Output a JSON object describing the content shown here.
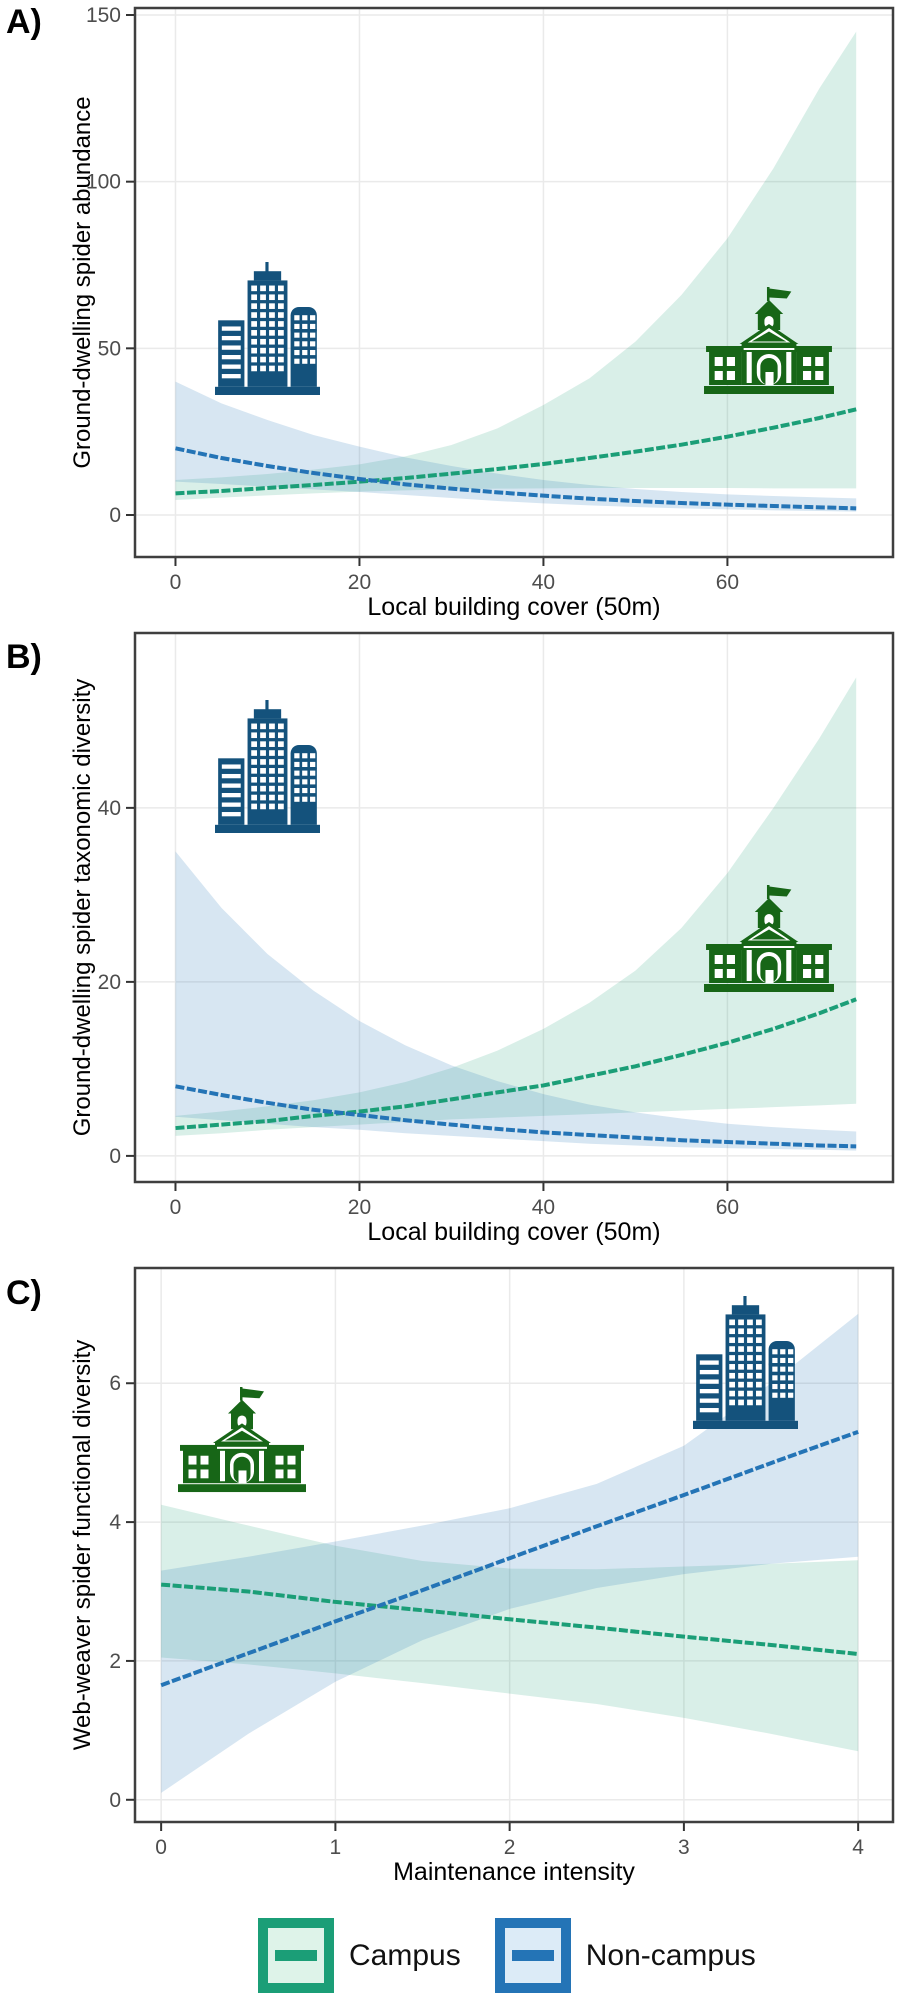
{
  "figure_title": "",
  "legend": {
    "items": [
      {
        "label": "Campus",
        "line_color": "#1b9e77",
        "key_fill": "#def3e9"
      },
      {
        "label": "Non-campus",
        "line_color": "#2474b6",
        "key_fill": "#dcebf7"
      }
    ],
    "position": "bottom"
  },
  "chart_data": {
    "type": "line",
    "panels": [
      {
        "label": "A)",
        "xlabel": "Local building cover (50m)",
        "ylabel": "Ground-dwelling spider abundance",
        "xticks": [
          0,
          20,
          40,
          60
        ],
        "yticks": [
          0,
          50,
          100,
          150
        ],
        "xlim": [
          -4.4,
          78
        ],
        "ylim": [
          -12.6,
          152.1
        ],
        "grid": true,
        "x": [
          0,
          5,
          10,
          15,
          20,
          25,
          30,
          35,
          40,
          45,
          50,
          55,
          60,
          65,
          70,
          74
        ],
        "series": [
          {
            "name": "Campus",
            "color": "#1b9e77",
            "ribbon": "rgba(27,158,119,0.17)",
            "y": [
              6.5,
              7.2,
              8.1,
              9.0,
              10.0,
              11.1,
              12.4,
              13.8,
              15.3,
              17.1,
              19.0,
              21.1,
              23.5,
              26.2,
              29.1,
              31.7
            ],
            "lower": [
              4.5,
              5.2,
              5.9,
              6.5,
              7.0,
              7.4,
              7.7,
              7.9,
              8.0,
              8.1,
              8.1,
              8.1,
              8.1,
              8.0,
              8.0,
              8.0
            ],
            "upper": [
              10.5,
              11.3,
              12.3,
              13.6,
              15.2,
              17.6,
              21,
              26,
              33,
              41,
              52,
              66,
              83,
              104,
              128,
              145
            ]
          },
          {
            "name": "Non-campus",
            "color": "#2474b6",
            "ribbon": "rgba(36,116,182,0.18)",
            "y": [
              20,
              17.1,
              14.7,
              12.6,
              10.8,
              9.2,
              7.9,
              6.8,
              5.8,
              4.9,
              4.2,
              3.6,
              3.1,
              2.7,
              2.3,
              2.0
            ],
            "lower": [
              10,
              9.3,
              8.5,
              7.7,
              6.9,
              6.0,
              5.1,
              4.2,
              3.5,
              2.9,
              2.4,
              2.0,
              1.7,
              1.4,
              1.2,
              1.0
            ],
            "upper": [
              40,
              33.5,
              28.5,
              24,
              20.5,
              17.3,
              14.7,
              12.4,
              10.5,
              9.0,
              7.8,
              6.9,
              6.2,
              5.7,
              5.3,
              5.0
            ]
          }
        ],
        "icons": [
          {
            "name": "city-buildings-icon",
            "color": "#14527c"
          },
          {
            "name": "campus-building-icon",
            "color": "#176617"
          }
        ]
      },
      {
        "label": "B)",
        "xlabel": "Local building cover (50m)",
        "ylabel": "Ground-dwelling spider taxonomic diversity",
        "xticks": [
          0,
          20,
          40,
          60
        ],
        "yticks": [
          0,
          20,
          40
        ],
        "xlim": [
          -4.4,
          78
        ],
        "ylim": [
          -3.0,
          60.1
        ],
        "grid": true,
        "x": [
          0,
          5,
          10,
          15,
          20,
          25,
          30,
          35,
          40,
          45,
          50,
          55,
          60,
          65,
          70,
          74
        ],
        "series": [
          {
            "name": "Campus",
            "color": "#1b9e77",
            "ribbon": "rgba(27,158,119,0.17)",
            "y": [
              3.2,
              3.6,
              4.0,
              4.6,
              5.1,
              5.7,
              6.5,
              7.3,
              8.1,
              9.2,
              10.3,
              11.6,
              13.0,
              14.6,
              16.4,
              18.0
            ],
            "lower": [
              2.3,
              2.6,
              3.0,
              3.3,
              3.6,
              3.9,
              4.2,
              4.4,
              4.6,
              4.8,
              5.0,
              5.2,
              5.4,
              5.6,
              5.8,
              6.0
            ],
            "upper": [
              4.6,
              5.1,
              5.7,
              6.4,
              7.3,
              8.5,
              10.1,
              12.1,
              14.6,
              17.6,
              21.3,
              26.2,
              32.5,
              40,
              48,
              55
            ]
          },
          {
            "name": "Non-campus",
            "color": "#2474b6",
            "ribbon": "rgba(36,116,182,0.18)",
            "y": [
              8.0,
              7.0,
              6.1,
              5.3,
              4.7,
              4.1,
              3.6,
              3.1,
              2.7,
              2.4,
              2.1,
              1.8,
              1.6,
              1.4,
              1.2,
              1.1
            ],
            "lower": [
              4.5,
              4.1,
              3.7,
              3.3,
              3.0,
              2.6,
              2.3,
              2.0,
              1.7,
              1.4,
              1.2,
              1.0,
              0.9,
              0.8,
              0.7,
              0.6
            ],
            "upper": [
              35,
              28.5,
              23.2,
              19,
              15.5,
              12.7,
              10.4,
              8.6,
              7.1,
              5.9,
              5.0,
              4.3,
              3.7,
              3.3,
              3.0,
              2.8
            ]
          }
        ],
        "icons": [
          {
            "name": "city-buildings-icon",
            "color": "#14527c"
          },
          {
            "name": "campus-building-icon",
            "color": "#176617"
          }
        ]
      },
      {
        "label": "C)",
        "xlabel": "Maintenance intensity",
        "ylabel": "Web-weaver spider functional diversity",
        "xticks": [
          0,
          1,
          2,
          3,
          4
        ],
        "yticks": [
          0,
          2,
          4,
          6
        ],
        "xlim": [
          -0.15,
          4.2
        ],
        "ylim": [
          -0.32,
          7.66
        ],
        "grid": true,
        "x": [
          0,
          0.5,
          1,
          1.5,
          2,
          2.5,
          3,
          3.5,
          4
        ],
        "series": [
          {
            "name": "Campus",
            "color": "#1b9e77",
            "ribbon": "rgba(27,158,119,0.17)",
            "y": [
              3.1,
              3.0,
              2.85,
              2.73,
              2.6,
              2.48,
              2.35,
              2.23,
              2.1
            ],
            "lower": [
              2.05,
              1.95,
              1.82,
              1.68,
              1.53,
              1.38,
              1.18,
              0.95,
              0.7
            ],
            "upper": [
              4.25,
              3.95,
              3.66,
              3.44,
              3.33,
              3.32,
              3.36,
              3.4,
              3.45
            ]
          },
          {
            "name": "Non-campus",
            "color": "#2474b6",
            "ribbon": "rgba(36,116,182,0.18)",
            "y": [
              1.65,
              2.11,
              2.57,
              3.02,
              3.48,
              3.94,
              4.39,
              4.85,
              5.3
            ],
            "lower": [
              0.1,
              0.95,
              1.7,
              2.3,
              2.75,
              3.05,
              3.25,
              3.4,
              3.5
            ],
            "upper": [
              3.3,
              3.5,
              3.72,
              3.95,
              4.2,
              4.55,
              5.1,
              6.0,
              7.0
            ]
          }
        ],
        "icons": [
          {
            "name": "campus-building-icon",
            "color": "#176617"
          },
          {
            "name": "city-buildings-icon",
            "color": "#14527c"
          }
        ]
      }
    ],
    "style": {
      "grid_color": "#eaeaea",
      "border_color": "#3f3f3f",
      "tick_color": "#333333",
      "tick_label_color": "#4d4d4d",
      "title_color": "#000000"
    }
  }
}
